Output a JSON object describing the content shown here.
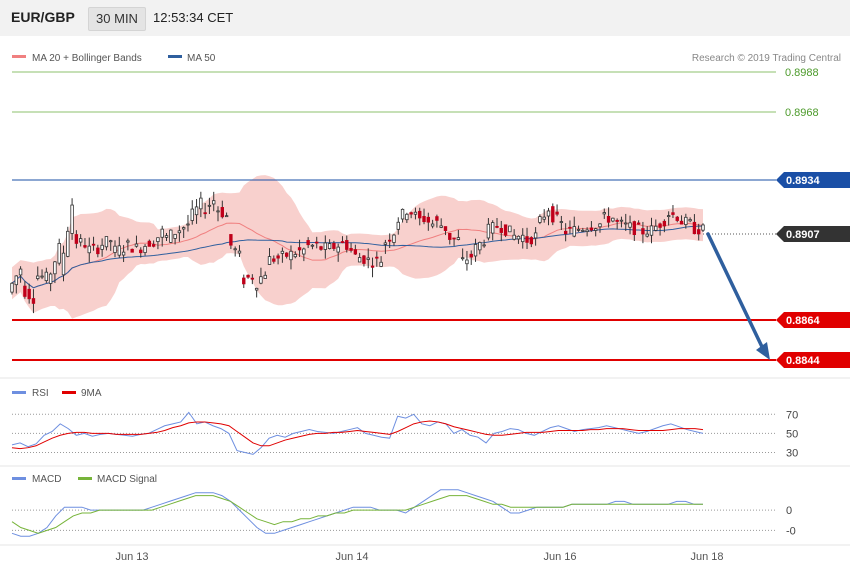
{
  "header": {
    "symbol": "EUR/GBP",
    "timeframe": "30 MIN",
    "time": "12:53:34 CET"
  },
  "copyright": "Research © 2019 Trading Central",
  "colors": {
    "bollinger_band": "#f5c0bc",
    "ma20": "#f08080",
    "ma50": "#2f5f9e",
    "candle": "#c0001a",
    "green_level": "#8cc16e",
    "blue_level": "#1a4fa6",
    "red_level": "#e00000",
    "forecast_arrow": "#2f5f9e",
    "rsi": "#6e8fe0",
    "rsi_ma": "#e00000",
    "macd": "#6e8fe0",
    "macd_signal": "#77b43a"
  },
  "chart_data": [
    {
      "type": "candlestick",
      "legend": [
        "MA 20 + Bollinger Bands",
        "MA 50"
      ],
      "x_labels": [
        "Jun 13",
        "Jun 14",
        "Jun 16",
        "Jun 18"
      ],
      "y_range": [
        0.8838,
        0.8992
      ],
      "levels": [
        {
          "value": 0.8988,
          "label": "0.8988",
          "kind": "resistance"
        },
        {
          "value": 0.8968,
          "label": "0.8968",
          "kind": "resistance"
        },
        {
          "value": 0.8934,
          "label": "0.8934",
          "kind": "pivot"
        },
        {
          "value": 0.8864,
          "label": "0.8864",
          "kind": "support"
        },
        {
          "value": 0.8844,
          "label": "0.8844",
          "kind": "support"
        }
      ],
      "current_price": {
        "value": 0.8907,
        "label": "0.8907"
      },
      "forecast": {
        "from": 0.8907,
        "to": 0.8844
      },
      "close_path": [
        [
          0.8878,
          0.889
        ],
        [
          0.888,
          0.8875
        ],
        [
          0.8887,
          0.8885
        ],
        [
          0.8882,
          0.89
        ],
        [
          0.8886,
          0.8922
        ],
        [
          0.8904,
          0.8902
        ],
        [
          0.8899,
          0.89
        ],
        [
          0.8901,
          0.8904
        ],
        [
          0.8898,
          0.89
        ],
        [
          0.8902,
          0.89
        ],
        [
          0.8899,
          0.8903
        ],
        [
          0.8901,
          0.8908
        ],
        [
          0.8904,
          0.8908
        ],
        [
          0.8908,
          0.8912
        ],
        [
          0.8914,
          0.8922
        ],
        [
          0.8918,
          0.8924
        ],
        [
          0.8921,
          0.8916
        ],
        [
          0.8904,
          0.8896
        ],
        [
          0.8883,
          0.8886
        ],
        [
          0.888,
          0.8888
        ],
        [
          0.8894,
          0.8895
        ],
        [
          0.8895,
          0.8897
        ],
        [
          0.8897,
          0.8899
        ],
        [
          0.8901,
          0.8901
        ],
        [
          0.89,
          0.89
        ],
        [
          0.89,
          0.8902
        ],
        [
          0.8904,
          0.8896
        ],
        [
          0.8896,
          0.8894
        ],
        [
          0.8893,
          0.8894
        ],
        [
          0.8901,
          0.8908
        ],
        [
          0.8912,
          0.8919
        ],
        [
          0.892,
          0.8914
        ],
        [
          0.8916,
          0.8912
        ],
        [
          0.8914,
          0.891
        ],
        [
          0.8906,
          0.8904
        ],
        [
          0.8892,
          0.8896
        ],
        [
          0.8898,
          0.8904
        ],
        [
          0.8908,
          0.8911
        ],
        [
          0.8912,
          0.8908
        ],
        [
          0.8906,
          0.8906
        ],
        [
          0.8903,
          0.8906
        ],
        [
          0.891,
          0.892
        ],
        [
          0.8918,
          0.8912
        ],
        [
          0.8908,
          0.8909
        ],
        [
          0.8909,
          0.8911
        ],
        [
          0.8911,
          0.8912
        ],
        [
          0.8915,
          0.8915
        ],
        [
          0.8913,
          0.8911
        ],
        [
          0.8911,
          0.8909
        ],
        [
          0.8908,
          0.8909
        ],
        [
          0.8909,
          0.8914
        ],
        [
          0.8918,
          0.8916
        ],
        [
          0.8914,
          0.8912
        ],
        [
          0.891,
          0.8909
        ]
      ]
    },
    {
      "type": "line",
      "legend": [
        "RSI",
        "9MA"
      ],
      "y_ticks": [
        "70",
        "50",
        "30"
      ],
      "y_range": [
        20,
        85
      ],
      "series": [
        {
          "name": "RSI",
          "values": [
            38,
            40,
            36,
            39,
            48,
            52,
            60,
            55,
            48,
            50,
            47,
            49,
            50,
            49,
            48,
            47,
            49,
            50,
            54,
            58,
            60,
            62,
            72,
            60,
            62,
            58,
            55,
            50,
            32,
            30,
            28,
            35,
            45,
            48,
            46,
            50,
            52,
            54,
            52,
            51,
            50,
            52,
            54,
            56,
            50,
            48,
            46,
            45,
            68,
            66,
            70,
            60,
            58,
            62,
            60,
            50,
            54,
            48,
            46,
            40,
            50,
            52,
            55,
            54,
            50,
            48,
            52,
            56,
            58,
            55,
            52,
            54,
            55,
            56,
            58,
            56,
            54,
            52,
            50,
            52,
            55,
            58,
            60,
            57,
            54,
            52,
            50
          ]
        },
        {
          "name": "9MA",
          "values": [
            35,
            34,
            35,
            37,
            41,
            45,
            48,
            50,
            51,
            51,
            50,
            50,
            50,
            49,
            49,
            49,
            49,
            50,
            51,
            53,
            56,
            58,
            61,
            62,
            62,
            61,
            60,
            58,
            52,
            46,
            40,
            37,
            37,
            40,
            43,
            45,
            47,
            49,
            50,
            50,
            51,
            51,
            52,
            53,
            52,
            51,
            50,
            49,
            52,
            56,
            60,
            62,
            63,
            62,
            60,
            57,
            55,
            53,
            51,
            49,
            48,
            48,
            49,
            50,
            51,
            51,
            51,
            52,
            53,
            53,
            53,
            53,
            54,
            54,
            55,
            55,
            55,
            54,
            53,
            53,
            53,
            53,
            54,
            55,
            55,
            55,
            54
          ]
        }
      ]
    },
    {
      "type": "line",
      "legend": [
        "MACD",
        "MACD Signal"
      ],
      "y_ticks": [
        "0",
        "-0"
      ],
      "y_range": [
        -0.0011,
        0.0009
      ],
      "series": [
        {
          "name": "MACD",
          "values": [
            -0.0008,
            -0.0009,
            -0.0009,
            -0.0008,
            -0.0006,
            -0.0002,
            0.0001,
            0.0001,
            0.0001,
            0.0,
            0.0,
            0.0,
            0.0,
            0.0,
            0.0,
            0.0,
            0.0001,
            0.0002,
            0.0003,
            0.0004,
            0.0005,
            0.0006,
            0.0006,
            0.0006,
            0.0005,
            0.0003,
            0.0,
            -0.0003,
            -0.0006,
            -0.0008,
            -0.0008,
            -0.0007,
            -0.0006,
            -0.0005,
            -0.0004,
            -0.0003,
            -0.0002,
            -0.0001,
            0.0,
            0.0001,
            0.0001,
            0.0001,
            0.0,
            0.0,
            0.0,
            -0.0001,
            0.0001,
            0.0003,
            0.0005,
            0.0007,
            0.0007,
            0.0007,
            0.0006,
            0.0005,
            0.0004,
            0.0003,
            0.0001,
            -0.0001,
            -0.0001,
            0.0,
            0.0001,
            0.0001,
            0.0001,
            0.0001,
            0.0002,
            0.0002,
            0.0002,
            0.0002,
            0.0002,
            0.0003,
            0.0003,
            0.0002,
            0.0002,
            0.0002,
            0.0002,
            0.0002,
            0.0003,
            0.0003,
            0.0002,
            0.0002
          ]
        },
        {
          "name": "MACD Signal",
          "values": [
            -0.0004,
            -0.0006,
            -0.0007,
            -0.0008,
            -0.0007,
            -0.0006,
            -0.0004,
            -0.0002,
            -0.0001,
            -0.0001,
            0.0,
            0.0,
            0.0,
            0.0,
            0.0,
            0.0,
            0.0,
            0.0001,
            0.0002,
            0.0003,
            0.0004,
            0.0005,
            0.0005,
            0.0005,
            0.0004,
            0.0003,
            0.0001,
            -0.0001,
            -0.0003,
            -0.0004,
            -0.0005,
            -0.0004,
            -0.0004,
            -0.0003,
            -0.0003,
            -0.0002,
            -0.0002,
            -0.0001,
            -0.0001,
            0.0,
            0.0,
            0.0,
            0.0,
            0.0,
            0.0,
            0.0,
            0.0001,
            0.0002,
            0.0003,
            0.0004,
            0.0005,
            0.0005,
            0.0005,
            0.0004,
            0.0003,
            0.0002,
            0.0002,
            0.0001,
            0.0001,
            0.0001,
            0.0001,
            0.0001,
            0.0001,
            0.0001,
            0.0002,
            0.0002,
            0.0002,
            0.0002,
            0.0002,
            0.0002,
            0.0002,
            0.0002,
            0.0002,
            0.0002,
            0.0002,
            0.0002,
            0.0002,
            0.0002,
            0.0002,
            0.0002
          ]
        }
      ]
    }
  ]
}
